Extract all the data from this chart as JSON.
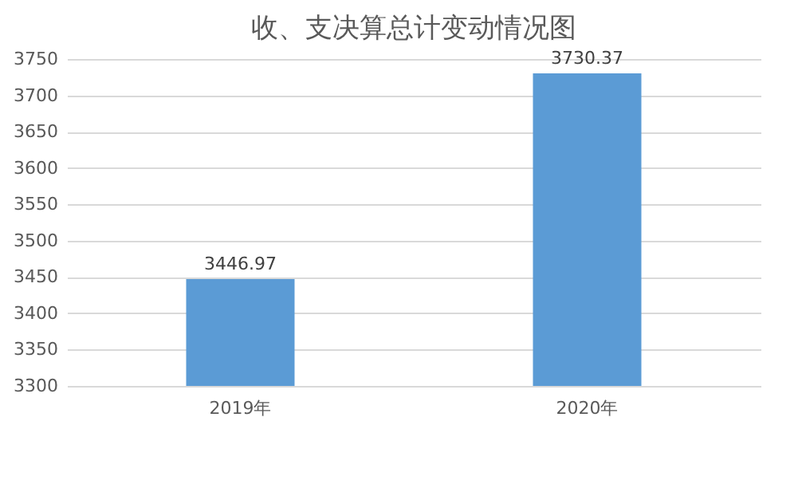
{
  "chart_data": {
    "type": "bar",
    "title": "收、支决算总计变动情况图",
    "categories": [
      "2019年",
      "2020年"
    ],
    "values": [
      3446.97,
      3730.37
    ],
    "color": "#5b9bd5",
    "ylim": [
      3300,
      3750
    ],
    "yticks": [
      3300,
      3350,
      3400,
      3450,
      3500,
      3550,
      3600,
      3650,
      3700,
      3750
    ],
    "grid": "y",
    "data_labels": true
  }
}
